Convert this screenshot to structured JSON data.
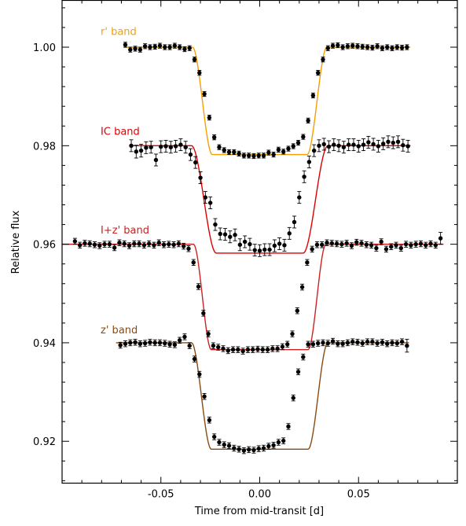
{
  "chart_data": {
    "type": "scatter",
    "title": "",
    "xlabel": "Time from mid-transit [d]",
    "ylabel": "Relative flux",
    "xlim": [
      -0.1,
      0.1
    ],
    "ylim": [
      0.9115,
      1.0095
    ],
    "xticks": [
      -0.05,
      0.0,
      0.05
    ],
    "xtick_labels": [
      "-0.05",
      "0.00",
      "0.05"
    ],
    "yticks": [
      0.92,
      0.94,
      0.96,
      0.98,
      1.0
    ],
    "ytick_labels": [
      "0.92",
      "0.94",
      "0.96",
      "0.98",
      "1.00"
    ],
    "grid": false,
    "series": [
      {
        "name": "r' band",
        "color": "#f5a000",
        "label_anchor": [
          -0.0805,
          1.0025
        ],
        "model": {
          "baseline": 1.0,
          "depth": 0.0218,
          "t1": 0.034,
          "t2": 0.024,
          "xmin": -0.0688,
          "xmax": 0.0763
        },
        "x": [
          -0.068,
          -0.0655,
          -0.063,
          -0.0605,
          -0.058,
          -0.0555,
          -0.053,
          -0.0505,
          -0.048,
          -0.0455,
          -0.043,
          -0.0405,
          -0.038,
          -0.0355,
          -0.033,
          -0.0305,
          -0.028,
          -0.0255,
          -0.023,
          -0.0205,
          -0.018,
          -0.0155,
          -0.013,
          -0.0105,
          -0.008,
          -0.0055,
          -0.003,
          -0.0005,
          0.002,
          0.0045,
          0.007,
          0.0095,
          0.012,
          0.0145,
          0.017,
          0.0195,
          0.022,
          0.0245,
          0.027,
          0.0295,
          0.032,
          0.0345,
          0.037,
          0.0395,
          0.042,
          0.0445,
          0.047,
          0.0495,
          0.052,
          0.0545,
          0.057,
          0.0595,
          0.062,
          0.0645,
          0.067,
          0.0695,
          0.072,
          0.0745
        ],
        "y": [
          1.0005,
          0.9995,
          0.9997,
          0.9995,
          1.0002,
          1.0,
          1.0001,
          1.0003,
          1.0,
          1.0,
          1.0003,
          1.0,
          0.9996,
          0.9998,
          0.9975,
          0.9948,
          0.9905,
          0.9857,
          0.9817,
          0.9797,
          0.9791,
          0.9787,
          0.9787,
          0.9784,
          0.978,
          0.978,
          0.9779,
          0.978,
          0.978,
          0.9786,
          0.9782,
          0.9792,
          0.9788,
          0.9794,
          0.9799,
          0.9806,
          0.9818,
          0.9851,
          0.9902,
          0.9948,
          0.9975,
          0.9998,
          1.0003,
          1.0004,
          1.0,
          1.0002,
          1.0003,
          1.0002,
          1.0001,
          1.0,
          0.9999,
          1.0002,
          0.9998,
          1.0,
          0.9998,
          1.0,
          0.9999,
          1.0
        ],
        "err": [
          0.0005,
          0.0005,
          0.0005,
          0.0005,
          0.0005,
          0.0005,
          0.0005,
          0.0005,
          0.0005,
          0.0005,
          0.0005,
          0.0005,
          0.0005,
          0.0005,
          0.0005,
          0.0005,
          0.0005,
          0.0005,
          0.0005,
          0.0005,
          0.0005,
          0.0005,
          0.0005,
          0.0005,
          0.0005,
          0.0005,
          0.0005,
          0.0005,
          0.0005,
          0.0005,
          0.0005,
          0.0005,
          0.0005,
          0.0005,
          0.0005,
          0.0005,
          0.0005,
          0.0005,
          0.0005,
          0.0005,
          0.0005,
          0.0005,
          0.0005,
          0.0005,
          0.0005,
          0.0005,
          0.0005,
          0.0005,
          0.0005,
          0.0005,
          0.0005,
          0.0005,
          0.0005,
          0.0005,
          0.0005,
          0.0005,
          0.0005,
          0.0005
        ]
      },
      {
        "name": "IC band",
        "color": "#dd0000",
        "label_anchor": [
          -0.0805,
          0.9822
        ],
        "model": {
          "baseline": 0.98,
          "depth": 0.0218,
          "t1": 0.0345,
          "t2": 0.022,
          "xmin": -0.0652,
          "xmax": 0.0763
        },
        "x": [
          -0.065,
          -0.0625,
          -0.06,
          -0.0575,
          -0.055,
          -0.0525,
          -0.05,
          -0.0475,
          -0.045,
          -0.0425,
          -0.04,
          -0.0375,
          -0.035,
          -0.0325,
          -0.03,
          -0.0275,
          -0.025,
          -0.0225,
          -0.02,
          -0.0175,
          -0.015,
          -0.0125,
          -0.01,
          -0.0075,
          -0.005,
          -0.0025,
          0.0,
          0.0025,
          0.005,
          0.0075,
          0.01,
          0.0125,
          0.015,
          0.0175,
          0.02,
          0.0225,
          0.025,
          0.0275,
          0.03,
          0.0325,
          0.035,
          0.0375,
          0.04,
          0.0425,
          0.045,
          0.0475,
          0.05,
          0.0525,
          0.055,
          0.0575,
          0.06,
          0.0625,
          0.065,
          0.0675,
          0.07,
          0.0725,
          0.075
        ],
        "y": [
          0.98,
          0.9788,
          0.979,
          0.9796,
          0.9797,
          0.9771,
          0.9798,
          0.9799,
          0.9797,
          0.9799,
          0.9802,
          0.9797,
          0.9782,
          0.9766,
          0.9735,
          0.9695,
          0.9684,
          0.964,
          0.9621,
          0.962,
          0.9615,
          0.9619,
          0.9599,
          0.9605,
          0.96,
          0.9588,
          0.9587,
          0.9589,
          0.9589,
          0.9597,
          0.9601,
          0.9598,
          0.9622,
          0.9645,
          0.9695,
          0.9737,
          0.9767,
          0.979,
          0.98,
          0.9803,
          0.9798,
          0.9802,
          0.98,
          0.9797,
          0.9802,
          0.9802,
          0.9799,
          0.9802,
          0.9807,
          0.9803,
          0.9799,
          0.9804,
          0.9808,
          0.9806,
          0.9808,
          0.9801,
          0.9799
        ],
        "err": [
          0.0012,
          0.0013,
          0.0013,
          0.0012,
          0.0012,
          0.0012,
          0.0012,
          0.0012,
          0.0012,
          0.0012,
          0.0012,
          0.0012,
          0.0012,
          0.0012,
          0.0012,
          0.0012,
          0.0012,
          0.0012,
          0.0012,
          0.0012,
          0.0012,
          0.0012,
          0.0012,
          0.0012,
          0.0012,
          0.0012,
          0.0012,
          0.0012,
          0.0012,
          0.0012,
          0.0012,
          0.0012,
          0.0012,
          0.0012,
          0.0012,
          0.0012,
          0.0012,
          0.0012,
          0.0012,
          0.0012,
          0.0012,
          0.0012,
          0.0012,
          0.0012,
          0.0012,
          0.0012,
          0.0012,
          0.0012,
          0.0012,
          0.0012,
          0.0012,
          0.0012,
          0.0012,
          0.0012,
          0.0012,
          0.0012,
          0.0012
        ]
      },
      {
        "name": "I+z' band",
        "color": "#cc2222",
        "label_anchor": [
          -0.0805,
          0.9622
        ],
        "model": {
          "baseline": 0.96,
          "depth": 0.0214,
          "t1": 0.0335,
          "t2": 0.0245,
          "xmin": -0.1,
          "xmax": 0.093
        },
        "x": [
          -0.0935,
          -0.091,
          -0.0885,
          -0.086,
          -0.0835,
          -0.081,
          -0.0785,
          -0.076,
          -0.0735,
          -0.071,
          -0.0685,
          -0.066,
          -0.0635,
          -0.061,
          -0.0585,
          -0.056,
          -0.0535,
          -0.051,
          -0.0485,
          -0.046,
          -0.0435,
          -0.041,
          -0.0385,
          -0.036,
          -0.0335,
          -0.031,
          -0.0285,
          -0.026,
          -0.0235,
          -0.021,
          -0.0185,
          -0.016,
          -0.0135,
          -0.011,
          -0.0085,
          -0.006,
          -0.0035,
          -0.001,
          0.0015,
          0.004,
          0.0065,
          0.009,
          0.0115,
          0.014,
          0.0165,
          0.019,
          0.0215,
          0.024,
          0.0265,
          0.029,
          0.0315,
          0.034,
          0.0365,
          0.039,
          0.0415,
          0.044,
          0.0465,
          0.049,
          0.0515,
          0.054,
          0.0565,
          0.059,
          0.0615,
          0.064,
          0.0665,
          0.069,
          0.0715,
          0.074,
          0.0765,
          0.079,
          0.0815,
          0.084,
          0.0865,
          0.089,
          0.0915
        ],
        "y": [
          0.9606,
          0.9598,
          0.9602,
          0.9601,
          0.9599,
          0.9597,
          0.96,
          0.96,
          0.9593,
          0.9603,
          0.9601,
          0.9597,
          0.9601,
          0.9601,
          0.9598,
          0.9601,
          0.9598,
          0.9603,
          0.9599,
          0.96,
          0.9599,
          0.9601,
          0.9596,
          0.9591,
          0.9563,
          0.9514,
          0.946,
          0.9418,
          0.9394,
          0.9391,
          0.9388,
          0.9384,
          0.9386,
          0.9386,
          0.9383,
          0.9386,
          0.9386,
          0.9387,
          0.9386,
          0.9386,
          0.9388,
          0.9388,
          0.9392,
          0.9397,
          0.9418,
          0.9465,
          0.9513,
          0.9563,
          0.959,
          0.9599,
          0.9599,
          0.9603,
          0.9602,
          0.9601,
          0.96,
          0.9602,
          0.9597,
          0.9604,
          0.9602,
          0.9599,
          0.9598,
          0.9592,
          0.9605,
          0.959,
          0.9595,
          0.9598,
          0.9592,
          0.96,
          0.9598,
          0.96,
          0.9601,
          0.9598,
          0.9601,
          0.9598,
          0.9612
        ],
        "err": [
          0.0006,
          0.0006,
          0.0006,
          0.0006,
          0.0006,
          0.0006,
          0.0006,
          0.0006,
          0.0006,
          0.0006,
          0.0006,
          0.0006,
          0.0006,
          0.0006,
          0.0006,
          0.0006,
          0.0006,
          0.0006,
          0.0006,
          0.0006,
          0.0006,
          0.0006,
          0.0006,
          0.0006,
          0.0006,
          0.0006,
          0.0006,
          0.0006,
          0.0006,
          0.0006,
          0.0006,
          0.0006,
          0.0006,
          0.0006,
          0.0006,
          0.0006,
          0.0006,
          0.0006,
          0.0006,
          0.0006,
          0.0006,
          0.0006,
          0.0006,
          0.0006,
          0.0006,
          0.0006,
          0.0006,
          0.0006,
          0.0006,
          0.0006,
          0.0006,
          0.0006,
          0.0006,
          0.0006,
          0.0006,
          0.0006,
          0.0006,
          0.0006,
          0.0006,
          0.0006,
          0.0006,
          0.0006,
          0.0006,
          0.0006,
          0.0006,
          0.0006,
          0.0006,
          0.0006,
          0.0006,
          0.0006,
          0.0006,
          0.0006,
          0.0006,
          0.0006,
          0.0012
        ]
      },
      {
        "name": "z' band",
        "color": "#8a4a10",
        "label_anchor": [
          -0.0805,
          0.9419
        ],
        "model": {
          "baseline": 0.94,
          "depth": 0.0216,
          "t1": 0.0345,
          "t2": 0.0245,
          "xmin": -0.0727,
          "xmax": 0.0755
        },
        "x": [
          -0.0705,
          -0.068,
          -0.0655,
          -0.063,
          -0.0605,
          -0.058,
          -0.0555,
          -0.053,
          -0.0505,
          -0.048,
          -0.0455,
          -0.043,
          -0.0405,
          -0.038,
          -0.0355,
          -0.033,
          -0.0305,
          -0.028,
          -0.0255,
          -0.023,
          -0.0205,
          -0.018,
          -0.0155,
          -0.013,
          -0.0105,
          -0.008,
          -0.0055,
          -0.003,
          -0.0005,
          0.002,
          0.0045,
          0.007,
          0.0095,
          0.012,
          0.0145,
          0.017,
          0.0195,
          0.022,
          0.0245,
          0.027,
          0.0295,
          0.032,
          0.0345,
          0.037,
          0.0395,
          0.042,
          0.0445,
          0.047,
          0.0495,
          0.052,
          0.0545,
          0.057,
          0.0595,
          0.062,
          0.0645,
          0.067,
          0.0695,
          0.072,
          0.0745
        ],
        "y": [
          0.9395,
          0.9398,
          0.94,
          0.9401,
          0.9398,
          0.9399,
          0.9401,
          0.94,
          0.94,
          0.9399,
          0.9397,
          0.9396,
          0.9405,
          0.9412,
          0.9394,
          0.9367,
          0.9336,
          0.9291,
          0.9243,
          0.9209,
          0.9198,
          0.9193,
          0.9191,
          0.9186,
          0.9184,
          0.9181,
          0.9183,
          0.9182,
          0.9185,
          0.9186,
          0.919,
          0.9192,
          0.9198,
          0.9201,
          0.923,
          0.9288,
          0.9341,
          0.9371,
          0.9397,
          0.9397,
          0.9399,
          0.94,
          0.9399,
          0.9403,
          0.9398,
          0.9398,
          0.94,
          0.9402,
          0.9401,
          0.9399,
          0.9402,
          0.9402,
          0.9399,
          0.9401,
          0.9398,
          0.94,
          0.9399,
          0.9402,
          0.9394
        ],
        "err": [
          0.0006,
          0.0006,
          0.0006,
          0.0006,
          0.0006,
          0.0006,
          0.0006,
          0.0006,
          0.0006,
          0.0006,
          0.0006,
          0.0006,
          0.0006,
          0.0006,
          0.0006,
          0.0006,
          0.0006,
          0.0006,
          0.0006,
          0.0006,
          0.0006,
          0.0006,
          0.0006,
          0.0006,
          0.0006,
          0.0006,
          0.0006,
          0.0006,
          0.0006,
          0.0006,
          0.0006,
          0.0006,
          0.0006,
          0.0006,
          0.0006,
          0.0006,
          0.0006,
          0.0006,
          0.0006,
          0.0006,
          0.0006,
          0.0006,
          0.0006,
          0.0006,
          0.0006,
          0.0006,
          0.0006,
          0.0006,
          0.0006,
          0.0006,
          0.0006,
          0.0006,
          0.0006,
          0.0006,
          0.0006,
          0.0006,
          0.0006,
          0.0006,
          0.0013
        ]
      }
    ]
  }
}
